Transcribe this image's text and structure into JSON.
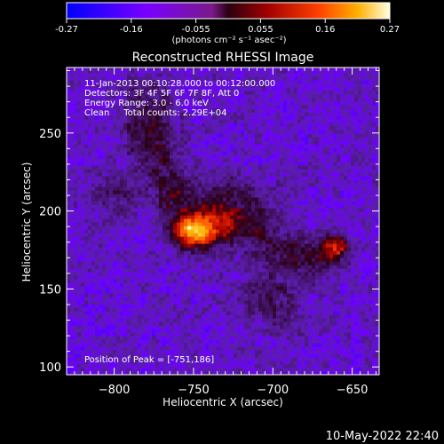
{
  "colorbar": {
    "ticks": [
      "-0.27",
      "-0.16",
      "-0.055",
      "0.055",
      "0.16",
      "0.27"
    ],
    "unit": "(photons cm⁻² s⁻¹ asec⁻²)",
    "range": [
      -0.27,
      0.27
    ]
  },
  "chart_data": {
    "type": "heatmap",
    "title": "Reconstructed RHESSI Image",
    "xlabel": "Heliocentric X (arcsec)",
    "ylabel": "Heliocentric Y (arcsec)",
    "xlim": [
      -830,
      -633
    ],
    "ylim": [
      95,
      292
    ],
    "xticks": [
      -800,
      -750,
      -700,
      -650
    ],
    "xtick_labels": [
      "−800",
      "−750",
      "−700",
      "−650"
    ],
    "yticks": [
      100,
      150,
      200,
      250
    ],
    "ytick_labels": [
      "100",
      "150",
      "200",
      "250"
    ],
    "annotations": [
      "11-Jan-2013 00:10:28.000 to 00:12:00.000",
      "Detectors: 3F 4F 5F 6F 7F 8F, Att 0",
      "Energy Range: 3.0 - 6.0 keV",
      "Clean     Total counts: 2.29E+04"
    ],
    "peak_label": "Position of Peak = [-751,186]",
    "peak": [
      -751,
      186
    ],
    "emission_sources": [
      {
        "x": -751,
        "y": 186,
        "sx": 9,
        "sy": 7,
        "amp": 0.27
      },
      {
        "x": -738,
        "y": 192,
        "sx": 12,
        "sy": 9,
        "amp": 0.19
      },
      {
        "x": -760,
        "y": 210,
        "sx": 10,
        "sy": 14,
        "amp": 0.1
      },
      {
        "x": -772,
        "y": 248,
        "sx": 9,
        "sy": 22,
        "amp": 0.1
      },
      {
        "x": -786,
        "y": 260,
        "sx": 8,
        "sy": 18,
        "amp": 0.08
      },
      {
        "x": -722,
        "y": 210,
        "sx": 14,
        "sy": 10,
        "amp": 0.09
      },
      {
        "x": -710,
        "y": 188,
        "sx": 12,
        "sy": 8,
        "amp": 0.1
      },
      {
        "x": -690,
        "y": 172,
        "sx": 14,
        "sy": 8,
        "amp": 0.08
      },
      {
        "x": -660,
        "y": 178,
        "sx": 5,
        "sy": 5,
        "amp": 0.2
      },
      {
        "x": -670,
        "y": 172,
        "sx": 10,
        "sy": 8,
        "amp": 0.1
      },
      {
        "x": -700,
        "y": 145,
        "sx": 16,
        "sy": 16,
        "amp": 0.07
      },
      {
        "x": -800,
        "y": 212,
        "sx": 12,
        "sy": 12,
        "amp": 0.06
      }
    ],
    "background_level": -0.13
  },
  "footer": {
    "timestamp": "10-May-2022 22:40"
  }
}
